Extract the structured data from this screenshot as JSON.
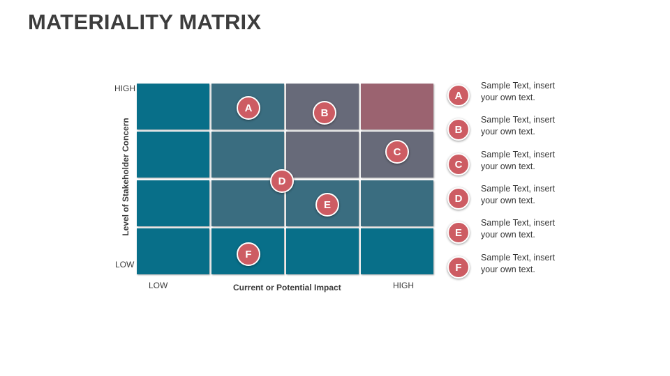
{
  "title": "MATERIALITY MATRIX",
  "colors": {
    "teal": "#086f89",
    "slate_teal": "#3a6d80",
    "slate": "#676a79",
    "rose": "#9b6370",
    "marker": "#cd5c63"
  },
  "axes": {
    "y_title": "Level of Stakeholder Concern",
    "x_title": "Current or Potential Impact",
    "y_high": "HIGH",
    "y_low": "LOW",
    "x_low": "LOW",
    "x_high": "HIGH"
  },
  "grid": {
    "rows_top_to_bottom": [
      [
        "teal",
        "slate_teal",
        "slate",
        "rose"
      ],
      [
        "teal",
        "slate_teal",
        "slate",
        "slate"
      ],
      [
        "teal",
        "slate_teal",
        "slate_teal",
        "slate_teal"
      ],
      [
        "teal",
        "teal",
        "teal",
        "teal"
      ]
    ]
  },
  "markers": [
    {
      "label": "A"
    },
    {
      "label": "B"
    },
    {
      "label": "C"
    },
    {
      "label": "D"
    },
    {
      "label": "E"
    },
    {
      "label": "F"
    }
  ],
  "legend": [
    {
      "label": "A",
      "text": "Sample Text, insert your own text."
    },
    {
      "label": "B",
      "text": "Sample Text, insert your own text."
    },
    {
      "label": "C",
      "text": "Sample Text, insert your own text."
    },
    {
      "label": "D",
      "text": "Sample Text, insert your own text."
    },
    {
      "label": "E",
      "text": "Sample Text, insert your own text."
    },
    {
      "label": "F",
      "text": "Sample Text, insert your own text."
    }
  ]
}
